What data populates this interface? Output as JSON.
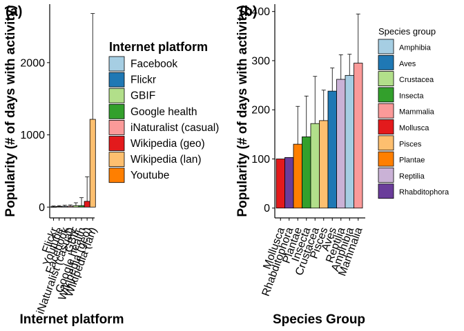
{
  "chart_data": [
    {
      "panel": "(a)",
      "type": "bar",
      "title": "",
      "xlabel": "Internet platform",
      "ylabel": "Popularity (# of days with activity)",
      "ylim": [
        -150,
        2810
      ],
      "yticks": [
        0,
        1000,
        2000
      ],
      "categories": [
        "Flickr",
        "Youtube",
        "Facebook",
        "iNaturalist (casual)",
        "GBIF",
        "Google health",
        "Wikipedia (geo)",
        "Wikipedia (lan)"
      ],
      "category_colors": [
        "#1f78b4",
        "#ff7f00",
        "#a6cee3",
        "#fb9a99",
        "#b2df8a",
        "#33a02c",
        "#e31a1c",
        "#fdbf6f"
      ],
      "values": [
        5,
        8,
        10,
        12,
        20,
        20,
        80,
        1215
      ],
      "error_upper": [
        15,
        20,
        25,
        30,
        60,
        130,
        420,
        2680
      ],
      "legend_title": "Internet platform",
      "legend": [
        {
          "label": "Facebook",
          "color": "#a6cee3"
        },
        {
          "label": "Flickr",
          "color": "#1f78b4"
        },
        {
          "label": "GBIF",
          "color": "#b2df8a"
        },
        {
          "label": "Google health",
          "color": "#33a02c"
        },
        {
          "label": "iNaturalist (casual)",
          "color": "#fb9a99"
        },
        {
          "label": "Wikipedia (geo)",
          "color": "#e31a1c"
        },
        {
          "label": "Wikipedia (lan)",
          "color": "#fdbf6f"
        },
        {
          "label": "Youtube",
          "color": "#ff7f00"
        }
      ],
      "legend_position": "right",
      "grid": false
    },
    {
      "panel": "(b)",
      "type": "bar",
      "title": "",
      "xlabel": "Species Group",
      "ylabel": "Popularity (# of days with activity)",
      "ylim": [
        -20,
        415
      ],
      "yticks": [
        0,
        100,
        200,
        300,
        400
      ],
      "categories": [
        "Mollusca",
        "Rhabditophora",
        "Plantae",
        "Insecta",
        "Crustacea",
        "Pisces",
        "Aves",
        "Reptilia",
        "Amphibia",
        "Mammalia"
      ],
      "category_colors": [
        "#e31a1c",
        "#6a3d9a",
        "#ff7f00",
        "#33a02c",
        "#b2df8a",
        "#fdbf6f",
        "#1f78b4",
        "#cab2d6",
        "#a6cee3",
        "#fb9a99"
      ],
      "values": [
        100,
        103,
        130,
        145,
        172,
        178,
        238,
        262,
        270,
        295
      ],
      "error_upper": [
        100,
        103,
        207,
        228,
        268,
        240,
        285,
        312,
        313,
        395
      ],
      "legend_title": "Species group",
      "legend": [
        {
          "label": "Amphibia",
          "color": "#a6cee3"
        },
        {
          "label": "Aves",
          "color": "#1f78b4"
        },
        {
          "label": "Crustacea",
          "color": "#b2df8a"
        },
        {
          "label": "Insecta",
          "color": "#33a02c"
        },
        {
          "label": "Mammalia",
          "color": "#fb9a99"
        },
        {
          "label": "Mollusca",
          "color": "#e31a1c"
        },
        {
          "label": "Pisces",
          "color": "#fdbf6f"
        },
        {
          "label": "Plantae",
          "color": "#ff7f00"
        },
        {
          "label": "Reptilia",
          "color": "#cab2d6"
        },
        {
          "label": "Rhabditophora",
          "color": "#6a3d9a"
        }
      ],
      "legend_position": "right",
      "grid": false
    }
  ]
}
